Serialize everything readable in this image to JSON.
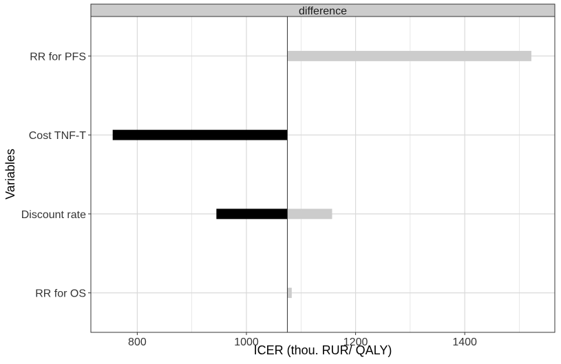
{
  "chart_data": {
    "type": "bar",
    "orientation": "horizontal",
    "facet_label": "difference",
    "xlabel": "ICER (thou. RUR/ QALY)",
    "ylabel": "Variables",
    "xlim": [
      715,
      1565
    ],
    "x_ticks": [
      800,
      1000,
      1200,
      1400
    ],
    "x_tick_labels": [
      "800",
      "1000",
      "1200",
      "1400"
    ],
    "base_value": 1075,
    "grid": true,
    "categories": [
      "RR for PFS",
      "Cost TNF-T",
      "Discount rate",
      "RR for OS"
    ],
    "series": [
      {
        "color": "#000000",
        "values": [
          null,
          755,
          945,
          null
        ]
      },
      {
        "color": "#cccccc",
        "values": [
          1522,
          null,
          1157,
          1083
        ]
      }
    ]
  },
  "colors": {
    "panel_border": "#333333",
    "grid": "#d9d9d9",
    "strip_fill": "#cccccc"
  }
}
